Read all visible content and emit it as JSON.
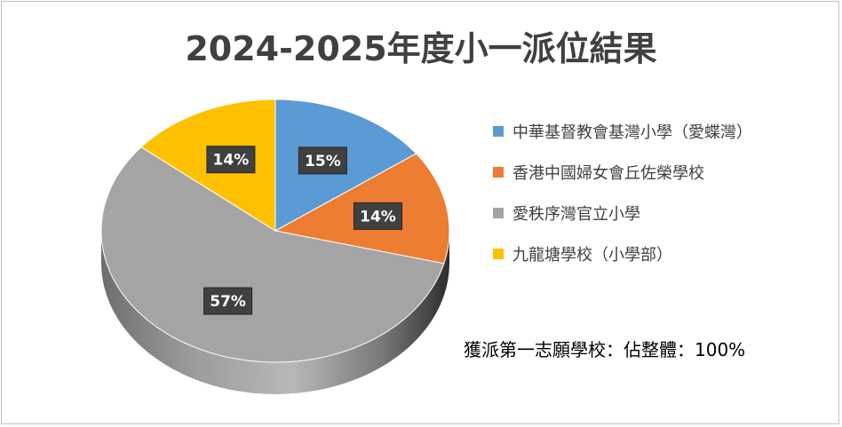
{
  "chart_data": {
    "type": "pie",
    "title": "2024-2025年度小一派位結果",
    "categories": [
      "中華基督教會基灣小學（愛蝶灣）",
      "香港中國婦女會丘佐榮學校",
      "愛秩序灣官立小學",
      "九龍塘學校（小學部）"
    ],
    "values": [
      15,
      14,
      57,
      14
    ],
    "data_labels": [
      "15%",
      "14%",
      "57%",
      "14%"
    ],
    "colors": [
      "#5b9bd5",
      "#ed7d31",
      "#a5a5a5",
      "#ffc000"
    ],
    "legend_position": "right",
    "note": "獲派第一志願學校：佔整體：100%"
  }
}
